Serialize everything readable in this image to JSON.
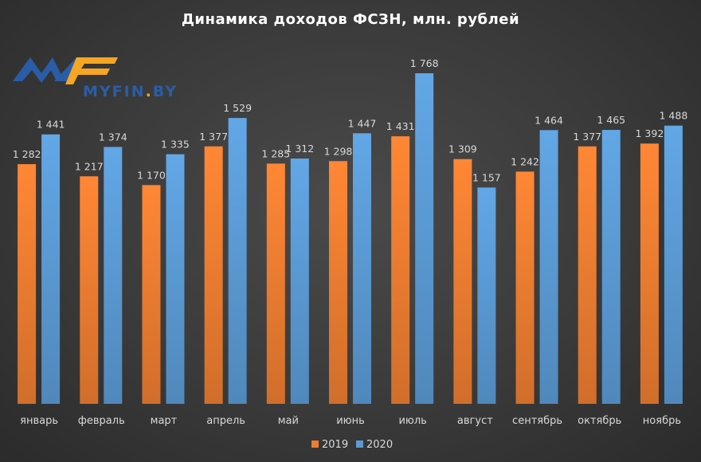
{
  "chart_data": {
    "type": "bar",
    "title": "Динамика  доходов  ФСЗН, млн. рублей",
    "categories": [
      "январь",
      "февраль",
      "март",
      "апрель",
      "май",
      "июнь",
      "июль",
      "август",
      "сентябрь",
      "октябрь",
      "ноябрь"
    ],
    "series": [
      {
        "name": "2019",
        "color": "#ed7d31",
        "values": [
          1282,
          1217,
          1170,
          1377,
          1285,
          1298,
          1431,
          1309,
          1242,
          1377,
          1392
        ],
        "labels": [
          "1 282",
          "1 217",
          "1 170",
          "1 377",
          "1 285",
          "1 298",
          "1 431",
          "1 309",
          "1 242",
          "1 377",
          "1 392"
        ]
      },
      {
        "name": "2020",
        "color": "#5b9bd5",
        "values": [
          1441,
          1374,
          1335,
          1529,
          1312,
          1447,
          1768,
          1157,
          1464,
          1465,
          1488
        ],
        "labels": [
          "1 441",
          "1 374",
          "1 335",
          "1 529",
          "1 312",
          "1 447",
          "1 768",
          "1 157",
          "1 464",
          "1 465",
          "1 488"
        ]
      }
    ],
    "ylim": [
      0,
      1900
    ],
    "grid": false,
    "legend": "bottom-center"
  },
  "logo": {
    "text": "MYFIN",
    "dot_text": ".",
    "suffix": "BY",
    "colors": {
      "blue": "#2a5da8",
      "orange": "#f5a623"
    }
  }
}
